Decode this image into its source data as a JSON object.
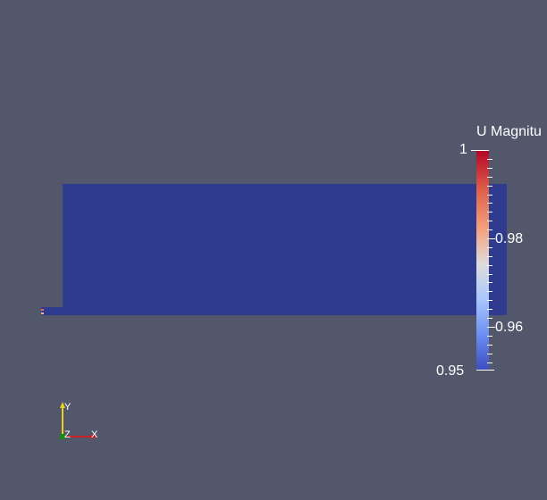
{
  "scalar_bar": {
    "title": "U Magnitu",
    "max_label": "1",
    "labels": [
      "0.98",
      "0.96"
    ],
    "min_label": "0.95",
    "colors": [
      "#b40426",
      "#dd5f4b",
      "#f4a27f",
      "#dddddd",
      "#a9c6fd",
      "#6b8df0",
      "#3b4cc0"
    ]
  },
  "axes": {
    "y_label": "Y",
    "z_label": "Z",
    "x_label": "X",
    "x_color": "#cc2222",
    "y_color": "#e6d21e",
    "z_color": "#1b8a1b"
  },
  "scene": {
    "background": "#52576b",
    "field_color": "#2f3b8f"
  }
}
